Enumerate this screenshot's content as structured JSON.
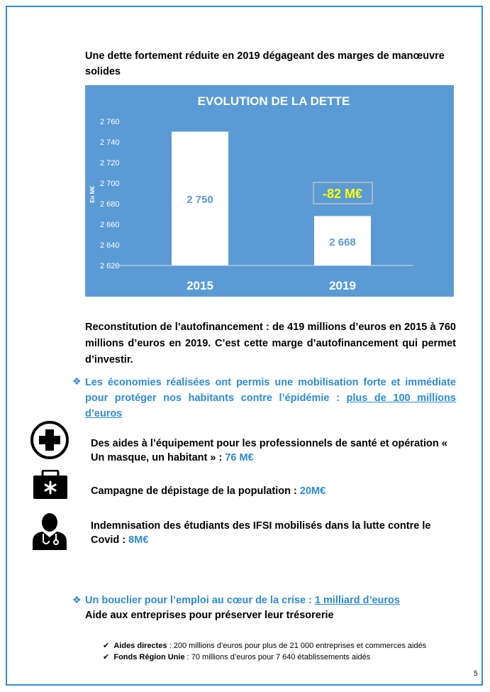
{
  "intro": "Une dette fortement réduite en 2019 dégageant des marges de manœuvre solides",
  "chart_data": {
    "type": "bar",
    "title": "EVOLUTION DE LA DETTE",
    "ylabel": "En M€",
    "categories": [
      "2015",
      "2019"
    ],
    "values": [
      2750,
      2668
    ],
    "value_labels": [
      "2 750",
      "2 668"
    ],
    "ylim": [
      2620,
      2760
    ],
    "yticks": [
      "2 620",
      "2 640",
      "2 660",
      "2 680",
      "2 700",
      "2 720",
      "2 740",
      "2 760"
    ],
    "annotation": "-82 M€",
    "grid": false,
    "background": "#5b9bd5",
    "bar_color": "#ffffff",
    "annotation_color": "#ffff00"
  },
  "autofinancement": "Reconstitution de l’autofinancement : de 419 millions d’euros en 2015 à 760 millions d’euros en 2019. C’est cette marge d’autofinancement qui permet d’investir.",
  "economies": {
    "text": "Les économies réalisées ont permis une mobilisation forte et immédiate pour protéger nos habitants contre l’épidémie : ",
    "amount": "plus de 100 millions d’euros"
  },
  "items": [
    {
      "icon": "medical-cross-icon",
      "text": "Des aides à l’équipement pour les professionnels de santé et opération « Un masque, un habitant » : ",
      "value": "76 M€"
    },
    {
      "icon": "medical-kit-icon",
      "text": "Campagne de dépistage de la population : ",
      "value": "20M€"
    },
    {
      "icon": "doctor-icon",
      "text": "Indemnisation des étudiants des IFSI mobilisés dans la lutte contre le Covid : ",
      "value": "8M€"
    }
  ],
  "bouclier": {
    "text": "Un bouclier pour l’emploi au cœur de la crise : ",
    "amount": "1 milliard d’euros",
    "subtitle": "Aide aux entreprises pour préserver leur trésorerie"
  },
  "aides": [
    {
      "label": "Aides directes",
      "text": " : 200 millions d’euros pour plus de 21 000 entreprises et commerces aidés"
    },
    {
      "label": "Fonds Région Unie",
      "text": " : 70 millions d’euros pour 7 640 établissements aidés"
    }
  ],
  "page_number": "5"
}
